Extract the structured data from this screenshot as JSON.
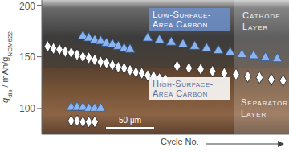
{
  "chart_data": {
    "type": "scatter",
    "y_label": [
      {
        "text": "q",
        "sub": false
      },
      {
        "text": "dis",
        "sub": true
      },
      {
        "text": " / mAh/g",
        "sub": false
      },
      {
        "text": "NCM622",
        "sub": true
      }
    ],
    "x_label": "Cycle No.",
    "xlim": [
      0,
      42
    ],
    "xticks": [],
    "ylim": [
      75,
      205
    ],
    "yticks": [
      100,
      150,
      200
    ],
    "tick_labels": "y",
    "grid": false,
    "series": [
      {
        "color": "#8db3ec",
        "marker": "triangle",
        "x": [
          5,
          6,
          7,
          8,
          9,
          10,
          7,
          8,
          9,
          10,
          11,
          12,
          13,
          14,
          15,
          18,
          20,
          22,
          24,
          26,
          28,
          30,
          32,
          34,
          36,
          38,
          40
        ],
        "values": [
          101,
          101,
          101,
          100,
          100,
          100,
          170,
          168,
          166,
          165,
          163,
          162,
          160,
          158,
          157,
          168,
          166,
          164,
          162,
          160,
          158,
          156,
          154,
          152,
          151,
          149,
          148
        ]
      },
      {
        "color": "#ffffff",
        "marker": "diamond",
        "x": [
          5,
          6,
          7,
          8,
          9,
          1,
          2,
          3,
          4,
          5,
          6,
          7,
          8,
          9,
          10,
          11,
          12,
          13,
          14,
          15,
          16,
          17,
          18,
          19,
          20,
          21,
          23,
          25,
          27,
          29,
          31,
          33,
          35,
          37,
          39,
          41
        ],
        "values": [
          88,
          88,
          87,
          87,
          87,
          160,
          158,
          157,
          155,
          154,
          152,
          150,
          149,
          147,
          145,
          144,
          142,
          140,
          139,
          137,
          135,
          134,
          132,
          131,
          129,
          128,
          141,
          139,
          138,
          136,
          134,
          133,
          131,
          130,
          128,
          127
        ]
      }
    ],
    "annotations": {
      "low_carbon": "Low-Surface-Area Carbon",
      "high_carbon": "High-Surface-Area Carbon",
      "cathode": "Cathode Layer",
      "separator": "Separator Layer",
      "scale_bar": "50 μm"
    }
  }
}
